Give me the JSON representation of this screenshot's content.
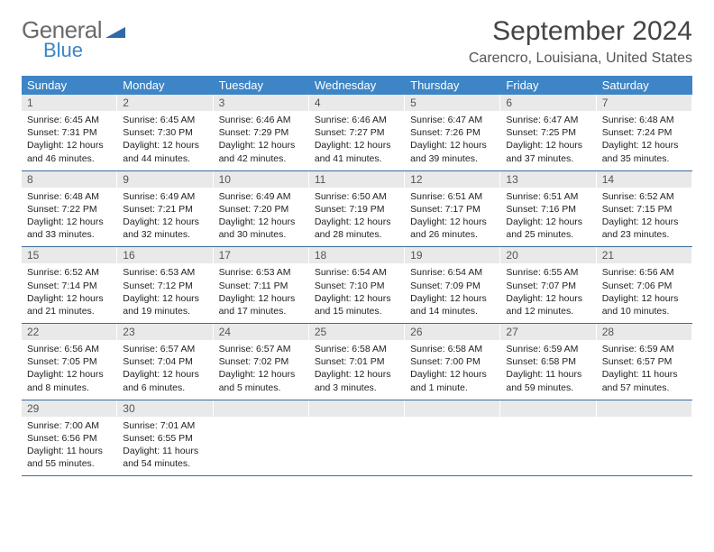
{
  "brand": {
    "general": "General",
    "blue": "Blue"
  },
  "title": "September 2024",
  "location": "Carencro, Louisiana, United States",
  "colors": {
    "header_bg": "#3d85c6",
    "daynum_bg": "#e9e9e9",
    "week_border": "#3d6a9a",
    "logo_gray": "#6a6a6a",
    "logo_blue": "#3d85c6",
    "text": "#333333"
  },
  "dow": [
    "Sunday",
    "Monday",
    "Tuesday",
    "Wednesday",
    "Thursday",
    "Friday",
    "Saturday"
  ],
  "weeks": [
    [
      {
        "n": "1",
        "sr": "6:45 AM",
        "ss": "7:31 PM",
        "dl": "12 hours and 46 minutes."
      },
      {
        "n": "2",
        "sr": "6:45 AM",
        "ss": "7:30 PM",
        "dl": "12 hours and 44 minutes."
      },
      {
        "n": "3",
        "sr": "6:46 AM",
        "ss": "7:29 PM",
        "dl": "12 hours and 42 minutes."
      },
      {
        "n": "4",
        "sr": "6:46 AM",
        "ss": "7:27 PM",
        "dl": "12 hours and 41 minutes."
      },
      {
        "n": "5",
        "sr": "6:47 AM",
        "ss": "7:26 PM",
        "dl": "12 hours and 39 minutes."
      },
      {
        "n": "6",
        "sr": "6:47 AM",
        "ss": "7:25 PM",
        "dl": "12 hours and 37 minutes."
      },
      {
        "n": "7",
        "sr": "6:48 AM",
        "ss": "7:24 PM",
        "dl": "12 hours and 35 minutes."
      }
    ],
    [
      {
        "n": "8",
        "sr": "6:48 AM",
        "ss": "7:22 PM",
        "dl": "12 hours and 33 minutes."
      },
      {
        "n": "9",
        "sr": "6:49 AM",
        "ss": "7:21 PM",
        "dl": "12 hours and 32 minutes."
      },
      {
        "n": "10",
        "sr": "6:49 AM",
        "ss": "7:20 PM",
        "dl": "12 hours and 30 minutes."
      },
      {
        "n": "11",
        "sr": "6:50 AM",
        "ss": "7:19 PM",
        "dl": "12 hours and 28 minutes."
      },
      {
        "n": "12",
        "sr": "6:51 AM",
        "ss": "7:17 PM",
        "dl": "12 hours and 26 minutes."
      },
      {
        "n": "13",
        "sr": "6:51 AM",
        "ss": "7:16 PM",
        "dl": "12 hours and 25 minutes."
      },
      {
        "n": "14",
        "sr": "6:52 AM",
        "ss": "7:15 PM",
        "dl": "12 hours and 23 minutes."
      }
    ],
    [
      {
        "n": "15",
        "sr": "6:52 AM",
        "ss": "7:14 PM",
        "dl": "12 hours and 21 minutes."
      },
      {
        "n": "16",
        "sr": "6:53 AM",
        "ss": "7:12 PM",
        "dl": "12 hours and 19 minutes."
      },
      {
        "n": "17",
        "sr": "6:53 AM",
        "ss": "7:11 PM",
        "dl": "12 hours and 17 minutes."
      },
      {
        "n": "18",
        "sr": "6:54 AM",
        "ss": "7:10 PM",
        "dl": "12 hours and 15 minutes."
      },
      {
        "n": "19",
        "sr": "6:54 AM",
        "ss": "7:09 PM",
        "dl": "12 hours and 14 minutes."
      },
      {
        "n": "20",
        "sr": "6:55 AM",
        "ss": "7:07 PM",
        "dl": "12 hours and 12 minutes."
      },
      {
        "n": "21",
        "sr": "6:56 AM",
        "ss": "7:06 PM",
        "dl": "12 hours and 10 minutes."
      }
    ],
    [
      {
        "n": "22",
        "sr": "6:56 AM",
        "ss": "7:05 PM",
        "dl": "12 hours and 8 minutes."
      },
      {
        "n": "23",
        "sr": "6:57 AM",
        "ss": "7:04 PM",
        "dl": "12 hours and 6 minutes."
      },
      {
        "n": "24",
        "sr": "6:57 AM",
        "ss": "7:02 PM",
        "dl": "12 hours and 5 minutes."
      },
      {
        "n": "25",
        "sr": "6:58 AM",
        "ss": "7:01 PM",
        "dl": "12 hours and 3 minutes."
      },
      {
        "n": "26",
        "sr": "6:58 AM",
        "ss": "7:00 PM",
        "dl": "12 hours and 1 minute."
      },
      {
        "n": "27",
        "sr": "6:59 AM",
        "ss": "6:58 PM",
        "dl": "11 hours and 59 minutes."
      },
      {
        "n": "28",
        "sr": "6:59 AM",
        "ss": "6:57 PM",
        "dl": "11 hours and 57 minutes."
      }
    ],
    [
      {
        "n": "29",
        "sr": "7:00 AM",
        "ss": "6:56 PM",
        "dl": "11 hours and 55 minutes."
      },
      {
        "n": "30",
        "sr": "7:01 AM",
        "ss": "6:55 PM",
        "dl": "11 hours and 54 minutes."
      },
      null,
      null,
      null,
      null,
      null
    ]
  ],
  "labels": {
    "sunrise": "Sunrise:",
    "sunset": "Sunset:",
    "daylight": "Daylight:"
  }
}
